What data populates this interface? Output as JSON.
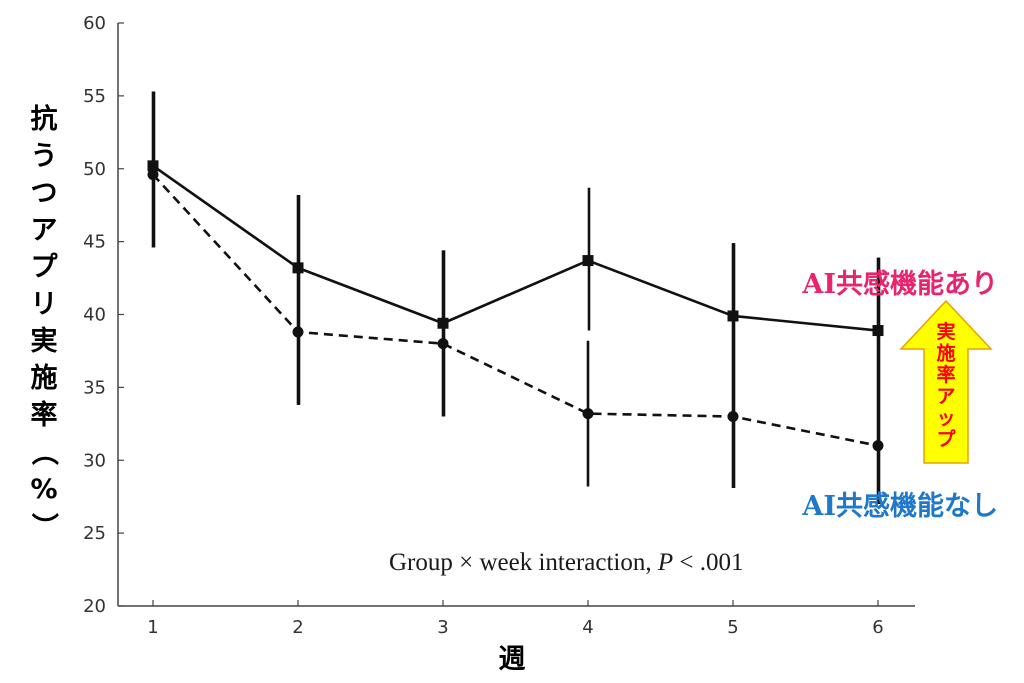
{
  "chart_data": {
    "type": "line",
    "title": "",
    "xlabel": "週",
    "ylabel": "抗うつアプリ実施率（%）",
    "x": [
      1,
      2,
      3,
      4,
      5,
      6
    ],
    "x_tick_labels": [
      "1",
      "2",
      "3",
      "4",
      "5",
      "6"
    ],
    "ylim": [
      20,
      60
    ],
    "y_ticks": [
      20,
      25,
      30,
      35,
      40,
      45,
      50,
      55,
      60
    ],
    "y_tick_labels": [
      "20",
      "25",
      "30",
      "35",
      "40",
      "45",
      "50",
      "55",
      "60"
    ],
    "grid": false,
    "series": [
      {
        "name": "AI共感機能あり",
        "line_style": "solid",
        "marker": "square",
        "values": [
          50.2,
          43.2,
          39.4,
          43.7,
          39.9,
          38.9
        ],
        "err_low": [
          44.6,
          33.8,
          33.0,
          38.9,
          28.1,
          27.0
        ],
        "err_high": [
          55.3,
          48.2,
          44.4,
          48.7,
          44.9,
          43.9
        ]
      },
      {
        "name": "AI共感機能なし",
        "line_style": "dashed",
        "marker": "circle",
        "values": [
          49.6,
          38.8,
          38.0,
          33.2,
          33.0,
          31.0
        ],
        "err_low": [
          44.6,
          33.8,
          33.0,
          28.2,
          28.1,
          27.0
        ],
        "err_high": [
          55.3,
          48.2,
          44.4,
          38.2,
          44.9,
          43.9
        ]
      }
    ],
    "annotation": {
      "prefix": "Group × week interaction, ",
      "p_symbol": "P",
      "suffix": " < .001"
    },
    "legend": [
      {
        "label": "AI共感機能あり",
        "color": "#e8246e",
        "position": "right"
      },
      {
        "label": "AI共感機能なし",
        "color": "#1f78c8",
        "position": "right"
      }
    ],
    "callout": {
      "text": "実施率アップ",
      "fill": "#ffff00",
      "stroke": "#e8a200",
      "text_color": "#ff0000",
      "direction": "up"
    }
  }
}
